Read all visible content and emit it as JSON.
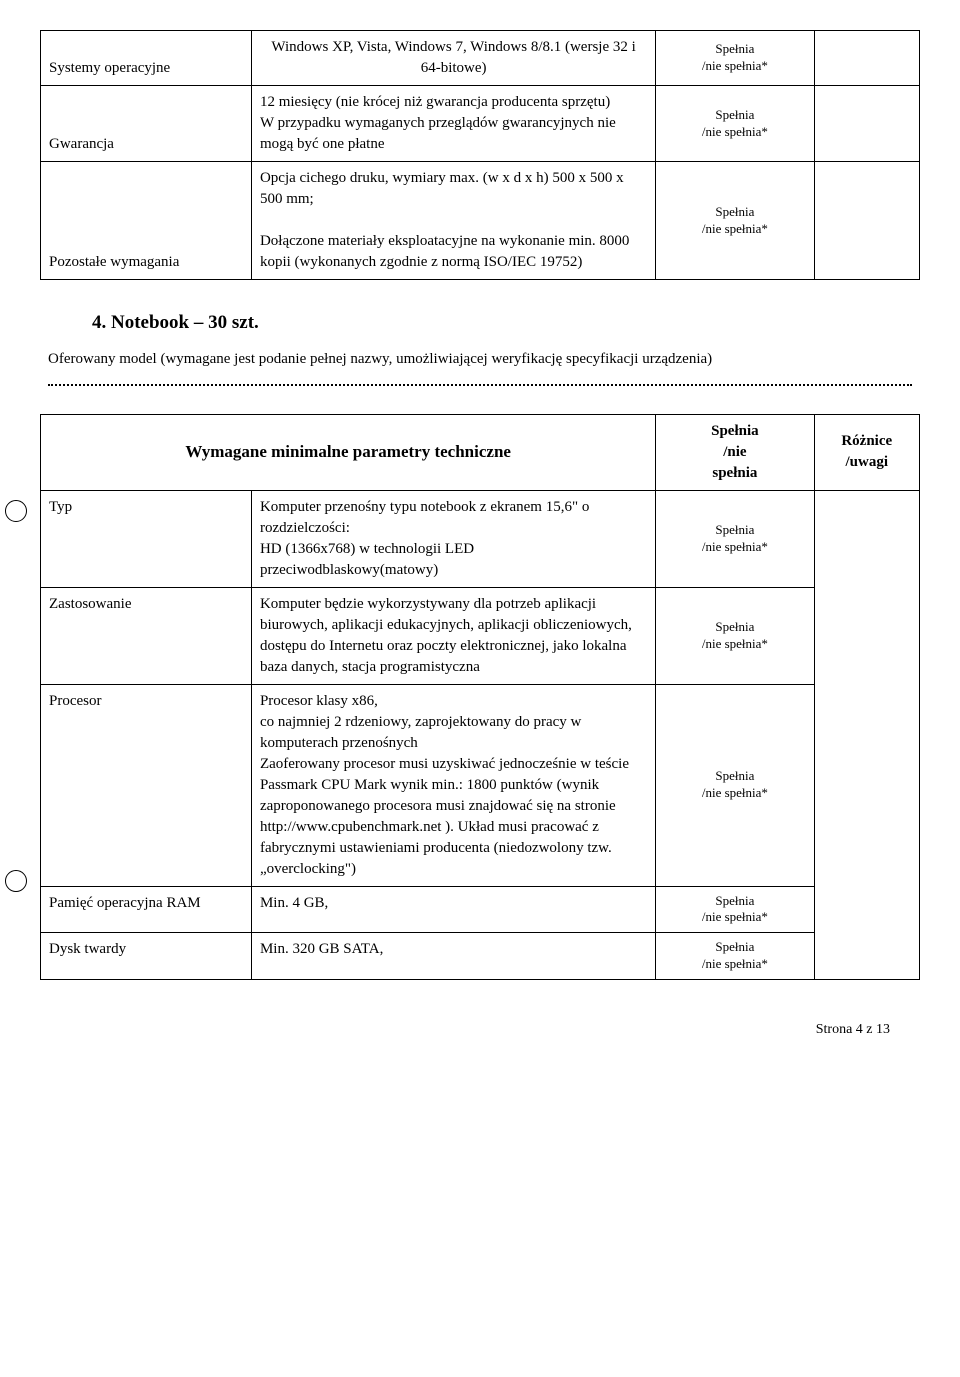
{
  "table1": {
    "rows": [
      {
        "label": "Systemy operacyjne",
        "desc": "Windows XP, Vista, Windows 7, Windows 8/8.1 (wersje 32 i 64-bitowe)",
        "status1": "Spełnia",
        "status2": "/nie spełnia*"
      },
      {
        "label": "Gwarancja",
        "desc": "12 miesięcy (nie krócej niż gwarancja producenta sprzętu)\nW przypadku wymaganych przeglądów gwarancyjnych nie mogą być one płatne",
        "status1": "Spełnia",
        "status2": "/nie spełnia*"
      },
      {
        "label": "Pozostałe wymagania",
        "desc": "Opcja cichego druku, wymiary max. (w x d x h) 500 x 500 x 500 mm;\n\nDołączone materiały eksploatacyjne na wykonanie min. 8000 kopii (wykonanych zgodnie z normą ISO/IEC 19752)",
        "status1": "Spełnia",
        "status2": "/nie spełnia*"
      }
    ]
  },
  "heading": "4. Notebook – 30 szt.",
  "intro": "Oferowany model (wymagane jest podanie pełnej nazwy, umożliwiającej weryfikację specyfikacji urządzenia)",
  "table2": {
    "header": {
      "main": "Wymagane minimalne parametry techniczne",
      "col3a": "Spełnia",
      "col3b": "/nie",
      "col3c": "spełnia",
      "col4a": "Różnice",
      "col4b": "/uwagi"
    },
    "rows": [
      {
        "label": "Typ",
        "desc": "Komputer przenośny typu notebook z ekranem 15,6\" o rozdzielczości:\nHD (1366x768) w technologii LED przeciwodblaskowy(matowy)",
        "status1": "Spełnia",
        "status2": "/nie spełnia*"
      },
      {
        "label": "Zastosowanie",
        "desc": "Komputer będzie wykorzystywany dla potrzeb aplikacji biurowych, aplikacji edukacyjnych, aplikacji obliczeniowych, dostępu do Internetu oraz poczty elektronicznej, jako lokalna baza danych, stacja programistyczna",
        "status1": "Spełnia",
        "status2": "/nie spełnia*"
      },
      {
        "label": "Procesor",
        "desc": "Procesor klasy x86,\nco najmniej 2 rdzeniowy, zaprojektowany do pracy w komputerach przenośnych\nZaoferowany procesor musi uzyskiwać jednocześnie w teście Passmark CPU Mark wynik min.: 1800 punktów (wynik zaproponowanego procesora musi znajdować się na stronie http://www.cpubenchmark.net ). Układ musi pracować z fabrycznymi ustawieniami producenta (niedozwolony tzw. „overclocking\")",
        "status1": "Spełnia",
        "status2": "/nie spełnia*"
      },
      {
        "label": "Pamięć operacyjna RAM",
        "desc": "Min. 4 GB,",
        "status1": "Spełnia",
        "status2": "/nie spełnia*"
      },
      {
        "label": "Dysk twardy",
        "desc": "Min. 320 GB SATA,",
        "status1": "Spełnia",
        "status2": "/nie spełnia*"
      }
    ]
  },
  "footer": "Strona 4 z 13"
}
